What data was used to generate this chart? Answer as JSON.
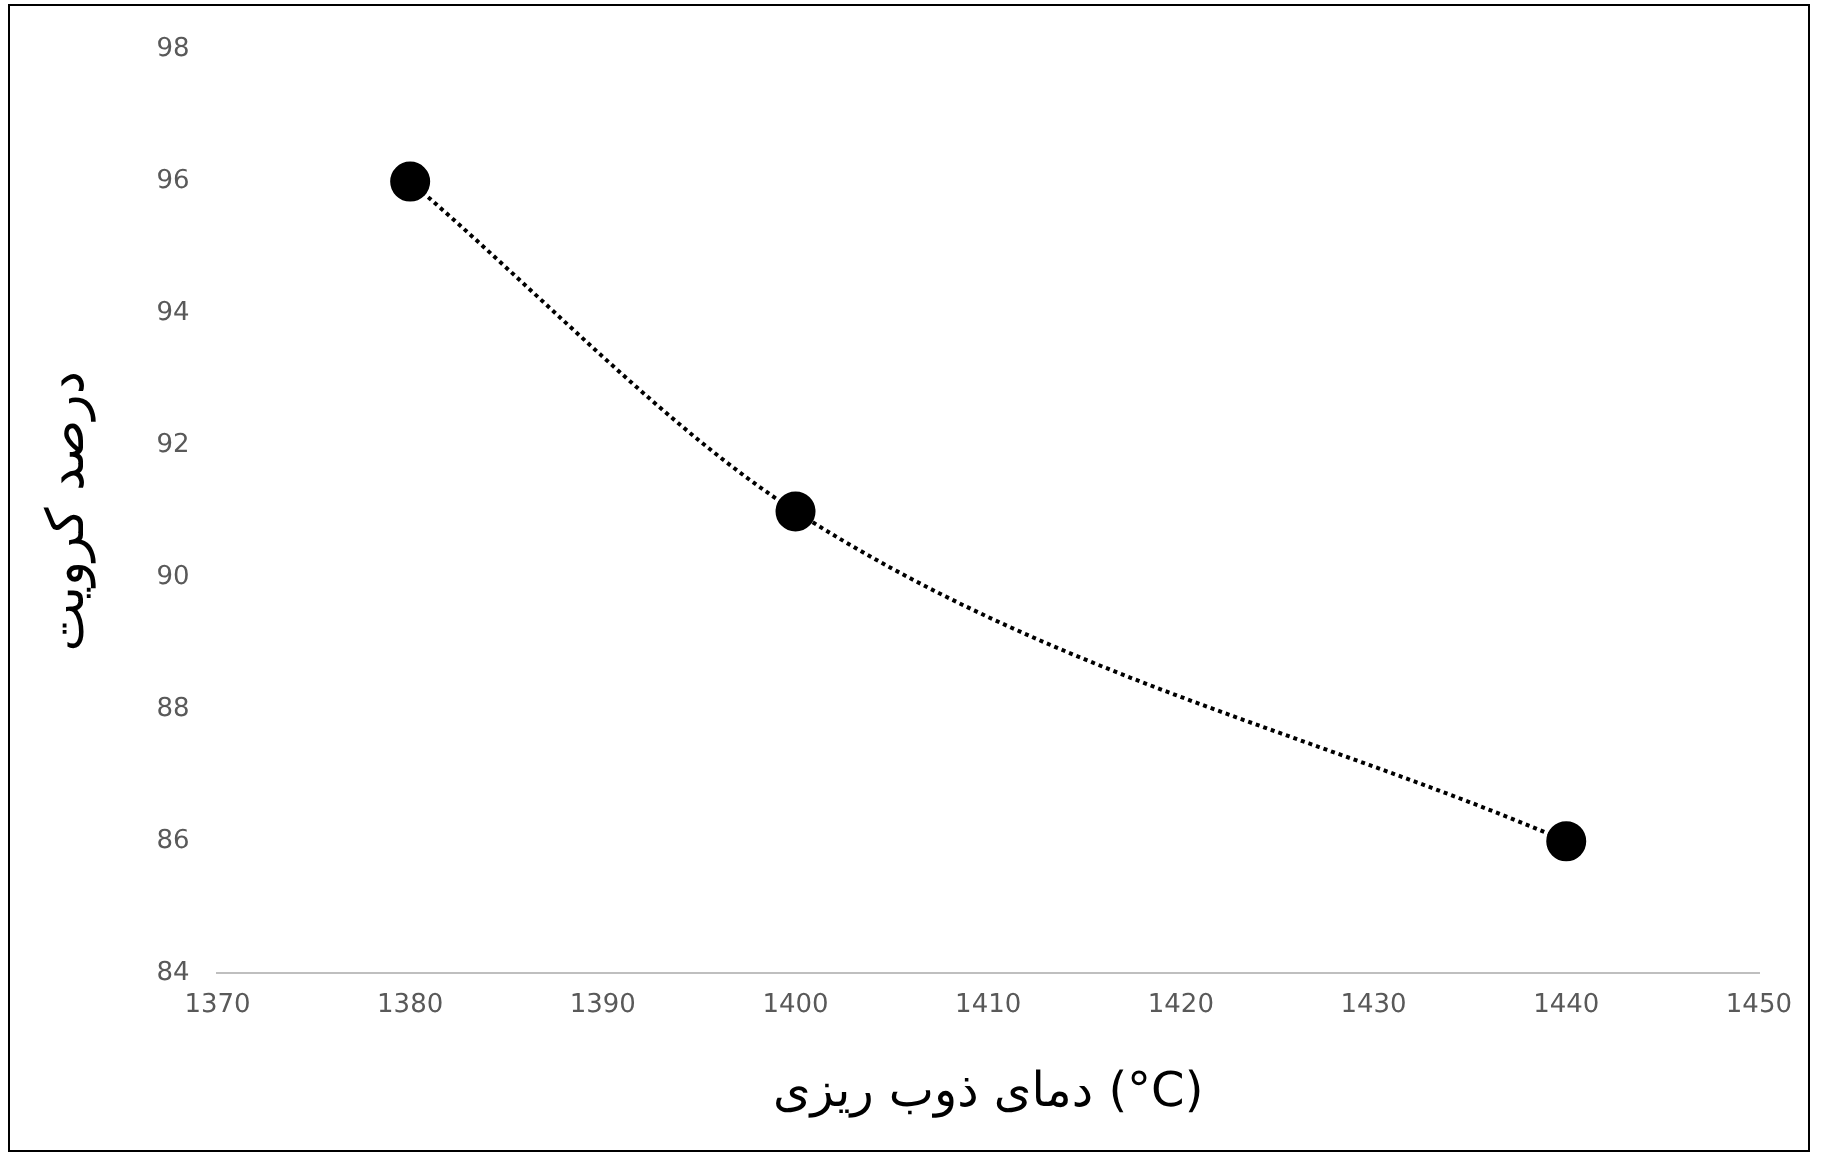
{
  "chart_data": {
    "type": "line",
    "xlabel": "دمای ذوب ریزی (°C)",
    "ylabel": "درصد کرویت",
    "x": [
      1380,
      1400,
      1440
    ],
    "series": [
      {
        "color": "#000000",
        "values": [
          96,
          91,
          86
        ]
      }
    ],
    "xlim": [
      1370,
      1450
    ],
    "xticks": [
      1370,
      1380,
      1390,
      1400,
      1410,
      1420,
      1430,
      1440,
      1450
    ],
    "ylim": [
      84,
      98
    ],
    "yticks": [
      84,
      86,
      88,
      90,
      92,
      94,
      96,
      98
    ],
    "grid": false,
    "legend": false,
    "marker": "circle",
    "line_style": "dotted"
  }
}
